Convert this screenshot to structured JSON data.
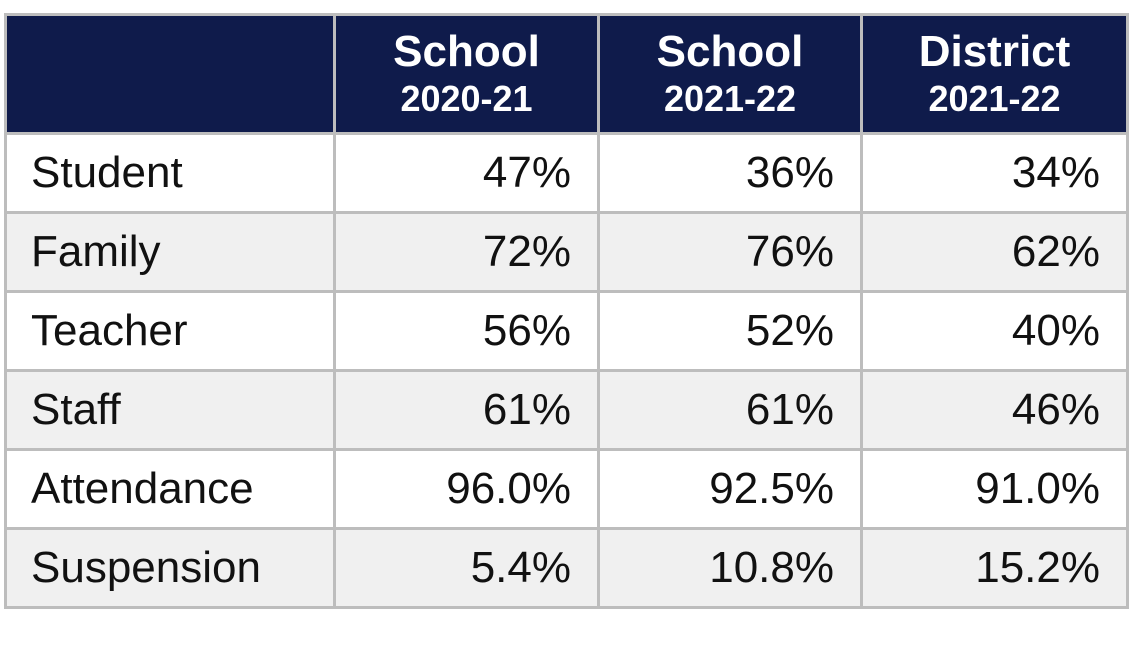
{
  "table": {
    "header": [
      {
        "title": "School",
        "period": "2020-21"
      },
      {
        "title": "School",
        "period": "2021-22"
      },
      {
        "title": "District",
        "period": "2021-22"
      }
    ],
    "rows": [
      [
        "Student",
        "47%",
        "36%",
        "34%"
      ],
      [
        "Family",
        "72%",
        "76%",
        "62%"
      ],
      [
        "Teacher",
        "56%",
        "52%",
        "40%"
      ],
      [
        "Staff",
        "61%",
        "61%",
        "46%"
      ],
      [
        "Attendance",
        "96.0%",
        "92.5%",
        "91.0%"
      ],
      [
        "Suspension",
        "5.4%",
        "10.8%",
        "15.2%"
      ]
    ]
  }
}
